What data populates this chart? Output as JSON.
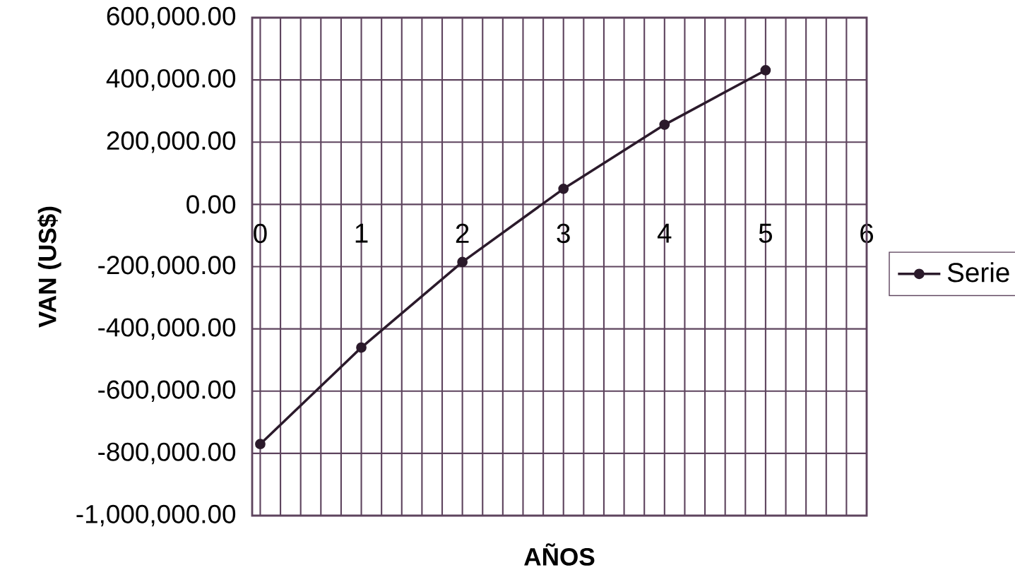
{
  "chart_data": {
    "type": "line",
    "xlabel": "AÑOS",
    "ylabel": "VAN (US$)",
    "x": [
      0,
      1,
      2,
      3,
      4,
      5
    ],
    "series": [
      {
        "name": "Serie",
        "color": "#2b1a2b",
        "values": [
          -770000,
          -460000,
          -185000,
          50000,
          256000,
          431000
        ]
      }
    ],
    "xlim": [
      -0.08,
      6
    ],
    "xticks": [
      0,
      1,
      2,
      3,
      4,
      5,
      6
    ],
    "ylim": [
      -1000000,
      600000
    ],
    "yticks": [
      {
        "value": -1000000,
        "label": "-1,000,000.00"
      },
      {
        "value": -800000,
        "label": "-800,000.00"
      },
      {
        "value": -600000,
        "label": "-600,000.00"
      },
      {
        "value": -400000,
        "label": "-400,000.00"
      },
      {
        "value": -200000,
        "label": "-200,000.00"
      },
      {
        "value": 0,
        "label": "0.00"
      },
      {
        "value": 200000,
        "label": "200,000.00"
      },
      {
        "value": 400000,
        "label": "400,000.00"
      },
      {
        "value": 600000,
        "label": "600,000.00"
      }
    ],
    "grid": true,
    "legend": "right",
    "marker": "circle",
    "line_style": "solid"
  }
}
